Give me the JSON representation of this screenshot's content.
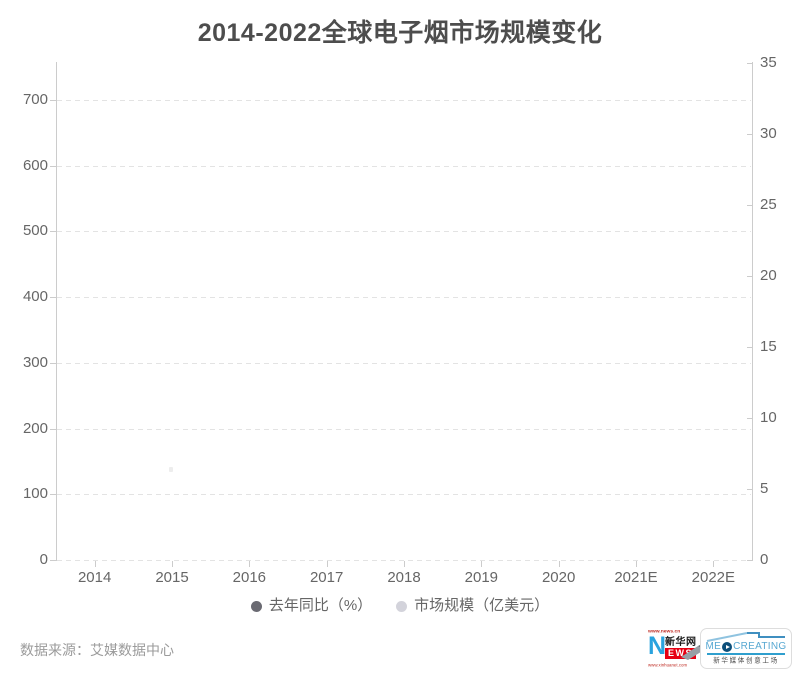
{
  "chart_data": {
    "type": "bar",
    "title": "2014-2022全球电子烟市场规模变化",
    "categories": [
      "2014",
      "2015",
      "2016",
      "2017",
      "2018",
      "2019",
      "2020",
      "2021E",
      "2022E"
    ],
    "series": [
      {
        "name": "去年同比（%）",
        "marker_color": "#6a6a72",
        "axis": "left",
        "values": []
      },
      {
        "name": "市场规模（亿美元）",
        "marker_color": "#d3d3db",
        "axis": "right",
        "values": []
      }
    ],
    "left_axis": {
      "ticks": [
        0,
        100,
        200,
        300,
        400,
        500,
        600,
        700
      ],
      "range": [
        0,
        700
      ]
    },
    "right_axis": {
      "ticks": [
        0,
        5,
        10,
        15,
        20,
        25,
        30,
        35
      ],
      "range": [
        0,
        35
      ]
    },
    "grid": true,
    "legend_position": "bottom",
    "plot_empty": true
  },
  "footer": {
    "source": "数据来源：艾媒数据中心",
    "xinhua_logo": {
      "url_top": "www.news.cn",
      "n_letter": "N",
      "cn_name": "新华网",
      "ews": "EWS",
      "url_bottom": "www.xinhuanet.com"
    },
    "med_logo": {
      "name_prefix": "ME",
      "name_suffix": "CREATING",
      "subtitle": "新华媒体创意工场"
    }
  },
  "colors": {
    "title": "#4d4d4d",
    "axis_text": "#666666",
    "axis_line": "#cccccc",
    "gridline": "#e3e3e3",
    "legend_text": "#666666",
    "source_text": "#9b9b9b",
    "xinhua_blue": "#2aa3de",
    "xinhua_red": "#e60012",
    "med_blue": "#57a8d2",
    "med_dark_blue": "#0d4f7a",
    "med_teal": "#2f9fce"
  }
}
